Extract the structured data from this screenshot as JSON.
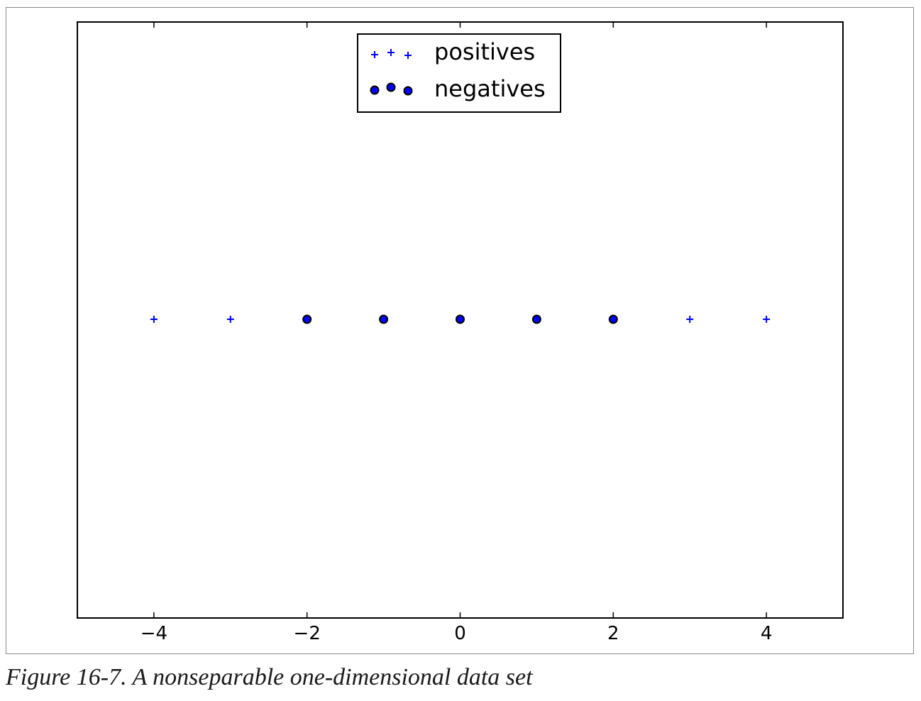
{
  "chart_data": {
    "type": "scatter",
    "title": "",
    "xlabel": "",
    "ylabel": "",
    "xlim": [
      -5,
      5
    ],
    "xticks": [
      -4,
      -2,
      0,
      2,
      4
    ],
    "xtick_labels": [
      "−4",
      "−2",
      "0",
      "2",
      "4"
    ],
    "yticks_shown": false,
    "legend_position": "upper center",
    "series": [
      {
        "name": "positives",
        "marker": "+",
        "color": "#0000ff",
        "x": [
          -4,
          -3,
          3,
          4
        ],
        "y": [
          0,
          0,
          0,
          0
        ]
      },
      {
        "name": "negatives",
        "marker": "o",
        "color": "#0000ff",
        "x": [
          -2,
          -1,
          0,
          1,
          2
        ],
        "y": [
          0,
          0,
          0,
          0,
          0
        ]
      }
    ]
  },
  "caption": "Figure 16-7. A nonseparable one-dimensional data set"
}
